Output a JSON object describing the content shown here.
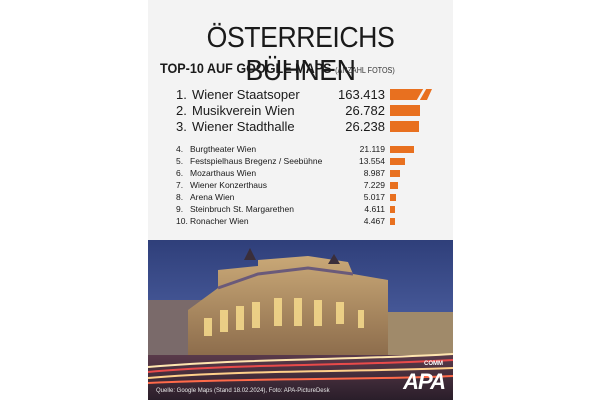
{
  "title": "ÖSTERREICHS BÜHNEN",
  "subtitle": "TOP-10 AUF GOOGLE MAPS",
  "subtitle_note": "(ANZAHL FOTOS)",
  "source": "Quelle: Google Maps (Stand 18.02.2024), Foto: APA-PictureDesk",
  "logo_text": "APA",
  "logo_sub": "COMM",
  "accent_color": "#e8701f",
  "chart_data": {
    "type": "bar",
    "orientation": "horizontal",
    "title": "ÖSTERREICHS BÜHNEN",
    "subtitle": "TOP-10 AUF GOOGLE MAPS (ANZAHL FOTOS)",
    "categories": [
      "Wiener Staatsoper",
      "Musikverein Wien",
      "Wiener Stadthalle",
      "Burgtheater Wien",
      "Festspielhaus Bregenz / Seebühne",
      "Mozarthaus Wien",
      "Wiener Konzerthaus",
      "Arena Wien",
      "Steinbruch St. Margarethen",
      "Ronacher Wien"
    ],
    "ranks": [
      "1.",
      "2.",
      "3.",
      "4.",
      "5.",
      "6.",
      "7.",
      "8.",
      "9.",
      "10."
    ],
    "labels": [
      "163.413",
      "26.782",
      "26.238",
      "21.119",
      "13.554",
      "8.987",
      "7.229",
      "5.017",
      "4.611",
      "4.467"
    ],
    "values": [
      163413,
      26782,
      26238,
      21119,
      13554,
      8987,
      7229,
      5017,
      4611,
      4467
    ],
    "truncated_first_bar": true,
    "bar_color": "#e8701f"
  }
}
